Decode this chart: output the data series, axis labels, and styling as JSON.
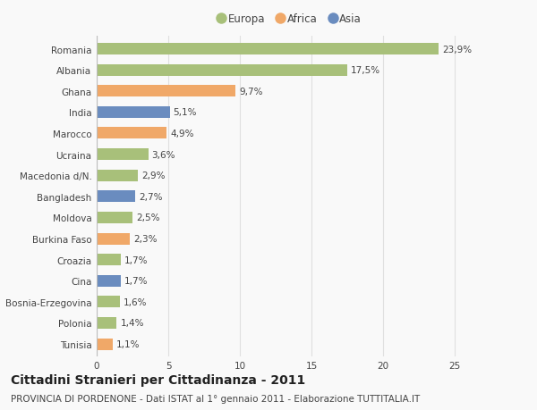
{
  "categories": [
    "Romania",
    "Albania",
    "Ghana",
    "India",
    "Marocco",
    "Ucraina",
    "Macedonia d/N.",
    "Bangladesh",
    "Moldova",
    "Burkina Faso",
    "Croazia",
    "Cina",
    "Bosnia-Erzegovina",
    "Polonia",
    "Tunisia"
  ],
  "values": [
    23.9,
    17.5,
    9.7,
    5.1,
    4.9,
    3.6,
    2.9,
    2.7,
    2.5,
    2.3,
    1.7,
    1.7,
    1.6,
    1.4,
    1.1
  ],
  "labels": [
    "23,9%",
    "17,5%",
    "9,7%",
    "5,1%",
    "4,9%",
    "3,6%",
    "2,9%",
    "2,7%",
    "2,5%",
    "2,3%",
    "1,7%",
    "1,7%",
    "1,6%",
    "1,4%",
    "1,1%"
  ],
  "colors": [
    "#a8c07a",
    "#a8c07a",
    "#f0a868",
    "#6a8cbf",
    "#f0a868",
    "#a8c07a",
    "#a8c07a",
    "#6a8cbf",
    "#a8c07a",
    "#f0a868",
    "#a8c07a",
    "#6a8cbf",
    "#a8c07a",
    "#a8c07a",
    "#f0a868"
  ],
  "legend_labels": [
    "Europa",
    "Africa",
    "Asia"
  ],
  "legend_colors": [
    "#a8c07a",
    "#f0a868",
    "#6a8cbf"
  ],
  "title": "Cittadini Stranieri per Cittadinanza - 2011",
  "subtitle": "PROVINCIA DI PORDENONE - Dati ISTAT al 1° gennaio 2011 - Elaborazione TUTTITALIA.IT",
  "xlim": [
    0,
    27
  ],
  "xticks": [
    0,
    5,
    10,
    15,
    20,
    25
  ],
  "background_color": "#f9f9f9",
  "grid_color": "#e0e0e0",
  "bar_height": 0.55,
  "label_fontsize": 7.5,
  "title_fontsize": 10,
  "subtitle_fontsize": 7.5,
  "tick_fontsize": 7.5,
  "legend_fontsize": 8.5
}
